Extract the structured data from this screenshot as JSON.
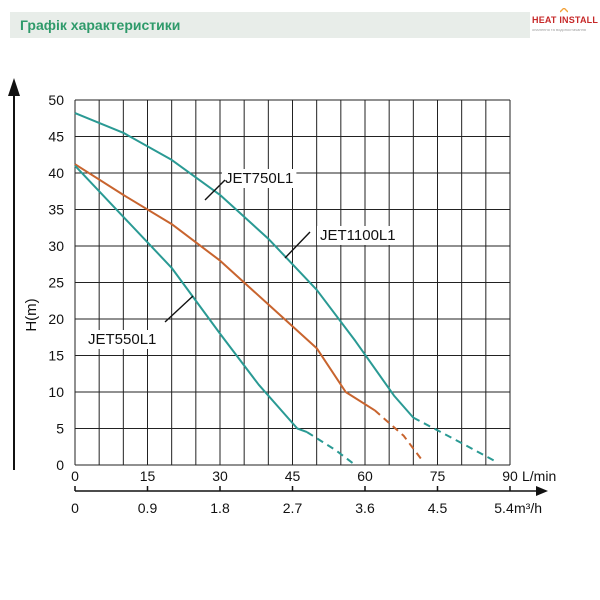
{
  "header": {
    "title": "Графік характеристики"
  },
  "logo": {
    "text": "HEAT INSTALL",
    "sub": "опалення та водопостачання"
  },
  "colors": {
    "header_bg": "#e8ede9",
    "header_text": "#2e9a6a",
    "teal": "#2a9a94",
    "orange": "#c8642e",
    "grid": "#222222"
  },
  "chart_data": {
    "type": "line",
    "ylabel": "H(m)",
    "xlabel": "L/min",
    "xlabel2": "m³/h",
    "xlim": [
      0,
      90
    ],
    "ylim": [
      0,
      50
    ],
    "x_ticks": [
      "0",
      "15",
      "30",
      "45",
      "60",
      "75",
      "90"
    ],
    "x2_ticks": [
      "0",
      "0.9",
      "1.8",
      "2.7",
      "3.6",
      "4.5",
      "5.4"
    ],
    "y_ticks": [
      "0",
      "5",
      "10",
      "15",
      "20",
      "25",
      "30",
      "35",
      "40",
      "45",
      "50"
    ],
    "grid": true,
    "series": [
      {
        "name": "JET750L1",
        "color": "#2a9a94",
        "solid": [
          [
            0,
            48.2
          ],
          [
            10,
            45.5
          ],
          [
            20,
            41.8
          ],
          [
            30,
            37
          ],
          [
            40,
            31
          ],
          [
            50,
            24
          ],
          [
            58,
            17
          ],
          [
            66,
            9.5
          ],
          [
            70,
            6.5
          ]
        ],
        "dashed": [
          [
            70,
            6.5
          ],
          [
            80,
            3
          ],
          [
            87,
            0.5
          ]
        ]
      },
      {
        "name": "JET1100L1",
        "color": "#c8642e",
        "solid": [
          [
            0,
            41.2
          ],
          [
            10,
            37
          ],
          [
            20,
            33
          ],
          [
            30,
            28
          ],
          [
            40,
            22
          ],
          [
            50,
            16
          ],
          [
            56,
            10
          ],
          [
            62,
            7.5
          ]
        ],
        "dashed": [
          [
            62,
            7.5
          ],
          [
            68,
            4
          ],
          [
            72,
            0.5
          ]
        ]
      },
      {
        "name": "JET550L1",
        "color": "#2a9a94",
        "solid": [
          [
            0,
            41
          ],
          [
            10,
            34
          ],
          [
            20,
            27
          ],
          [
            30,
            18
          ],
          [
            38,
            11
          ],
          [
            46,
            5
          ],
          [
            48,
            4.5
          ]
        ],
        "dashed": [
          [
            48,
            4.5
          ],
          [
            54,
            2
          ],
          [
            58,
            0
          ]
        ]
      }
    ]
  }
}
